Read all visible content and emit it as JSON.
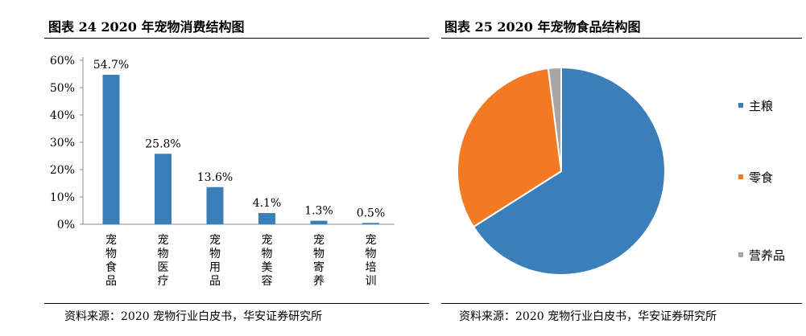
{
  "left_panel": {
    "title": "图表 24 2020 年宠物消费结构图",
    "source": "资料来源：2020 宠物行业白皮书，华安证券研究所"
  },
  "right_panel": {
    "title": "图表 25 2020 年宠物食品结构图",
    "source": "资料来源：2020 宠物行业白皮书，华安证券研究所"
  },
  "colors": {
    "bar": "#3b7fba",
    "pie_main": "#3b7fba",
    "pie_snack": "#f37a23",
    "pie_nutrition": "#a6a6a6"
  },
  "chart_data": [
    {
      "type": "bar",
      "title": "图表 24 2020 年宠物消费结构图",
      "categories": [
        "宠物食品",
        "宠物医疗",
        "宠物用品",
        "宠物美容",
        "宠物寄养",
        "宠物培训"
      ],
      "values": [
        54.7,
        25.8,
        13.6,
        4.1,
        1.3,
        0.5
      ],
      "value_labels": [
        "54.7%",
        "25.8%",
        "13.6%",
        "4.1%",
        "1.3%",
        "0.5%"
      ],
      "yticks": [
        "0%",
        "10%",
        "20%",
        "30%",
        "40%",
        "50%",
        "60%"
      ],
      "ylim": [
        0,
        60
      ],
      "xlabel": "",
      "ylabel": "",
      "grid": false
    },
    {
      "type": "pie",
      "title": "图表 25 2020 年宠物食品结构图",
      "labels": [
        "主粮",
        "零食",
        "营养品"
      ],
      "values": [
        66,
        32,
        2
      ],
      "legend_position": "right"
    }
  ]
}
